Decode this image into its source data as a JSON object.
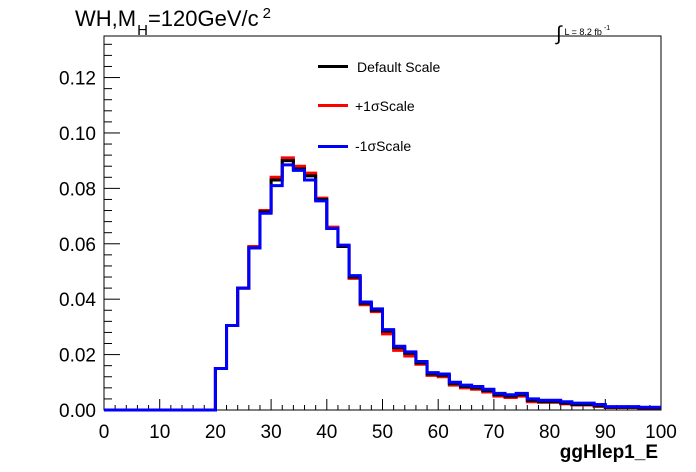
{
  "title": {
    "main": "WH,M",
    "sub": "H",
    "rest": "=120GeV/c",
    "sup": "2"
  },
  "lumi": {
    "integral": "∫",
    "text": "L = 8.2 fb",
    "sup": "-1"
  },
  "chart_data": {
    "type": "line",
    "xlabel": "ggHlep1_E",
    "ylabel": "",
    "xlim": [
      0,
      100
    ],
    "ylim": [
      0,
      0.135
    ],
    "x_ticks": [
      "0",
      "10",
      "20",
      "30",
      "40",
      "50",
      "60",
      "70",
      "80",
      "90",
      "100"
    ],
    "y_ticks": [
      "0.00",
      "0.02",
      "0.04",
      "0.06",
      "0.08",
      "0.10",
      "0.12"
    ],
    "bin_edges": [
      0,
      2,
      4,
      6,
      8,
      10,
      12,
      14,
      16,
      18,
      20,
      22,
      24,
      26,
      28,
      30,
      32,
      34,
      36,
      38,
      40,
      42,
      44,
      46,
      48,
      50,
      52,
      54,
      56,
      58,
      60,
      62,
      64,
      66,
      68,
      70,
      72,
      74,
      76,
      78,
      80,
      82,
      84,
      86,
      88,
      90,
      92,
      94,
      96,
      98,
      100
    ],
    "series": [
      {
        "name": "Default Scale",
        "color": "#000000",
        "values": [
          0,
          0,
          0,
          0,
          0,
          0,
          0,
          0,
          0,
          0,
          0.015,
          0.0305,
          0.044,
          0.0585,
          0.0715,
          0.083,
          0.09,
          0.087,
          0.0845,
          0.076,
          0.0655,
          0.059,
          0.048,
          0.0385,
          0.036,
          0.0285,
          0.0225,
          0.0205,
          0.017,
          0.013,
          0.0125,
          0.0095,
          0.0085,
          0.008,
          0.007,
          0.0055,
          0.005,
          0.0055,
          0.0035,
          0.003,
          0.003,
          0.0025,
          0.002,
          0.002,
          0.0015,
          0.001,
          0.001,
          0.001,
          0.0008,
          0.0008
        ]
      },
      {
        "name": "+1σScale",
        "color": "#ff0000",
        "values": [
          0,
          0,
          0,
          0,
          0,
          0,
          0,
          0,
          0,
          0,
          0.015,
          0.0305,
          0.044,
          0.059,
          0.072,
          0.084,
          0.091,
          0.088,
          0.0855,
          0.0765,
          0.066,
          0.059,
          0.0475,
          0.038,
          0.0355,
          0.0275,
          0.0215,
          0.0195,
          0.0165,
          0.0125,
          0.012,
          0.009,
          0.008,
          0.0075,
          0.0065,
          0.005,
          0.0045,
          0.005,
          0.003,
          0.0028,
          0.0028,
          0.0022,
          0.0018,
          0.0018,
          0.0013,
          0.0009,
          0.0009,
          0.0009,
          0.0007,
          0.0007
        ]
      },
      {
        "name": "-1σScale",
        "color": "#0000ff",
        "values": [
          0,
          0,
          0,
          0,
          0,
          0,
          0,
          0,
          0,
          0,
          0.015,
          0.0305,
          0.044,
          0.0585,
          0.071,
          0.081,
          0.0885,
          0.0865,
          0.083,
          0.0755,
          0.0655,
          0.0595,
          0.0485,
          0.039,
          0.0365,
          0.029,
          0.023,
          0.021,
          0.0175,
          0.0135,
          0.013,
          0.01,
          0.009,
          0.0085,
          0.0075,
          0.006,
          0.0055,
          0.006,
          0.004,
          0.0035,
          0.0035,
          0.003,
          0.0025,
          0.0025,
          0.002,
          0.0012,
          0.0012,
          0.0012,
          0.001,
          0.001
        ]
      }
    ]
  }
}
